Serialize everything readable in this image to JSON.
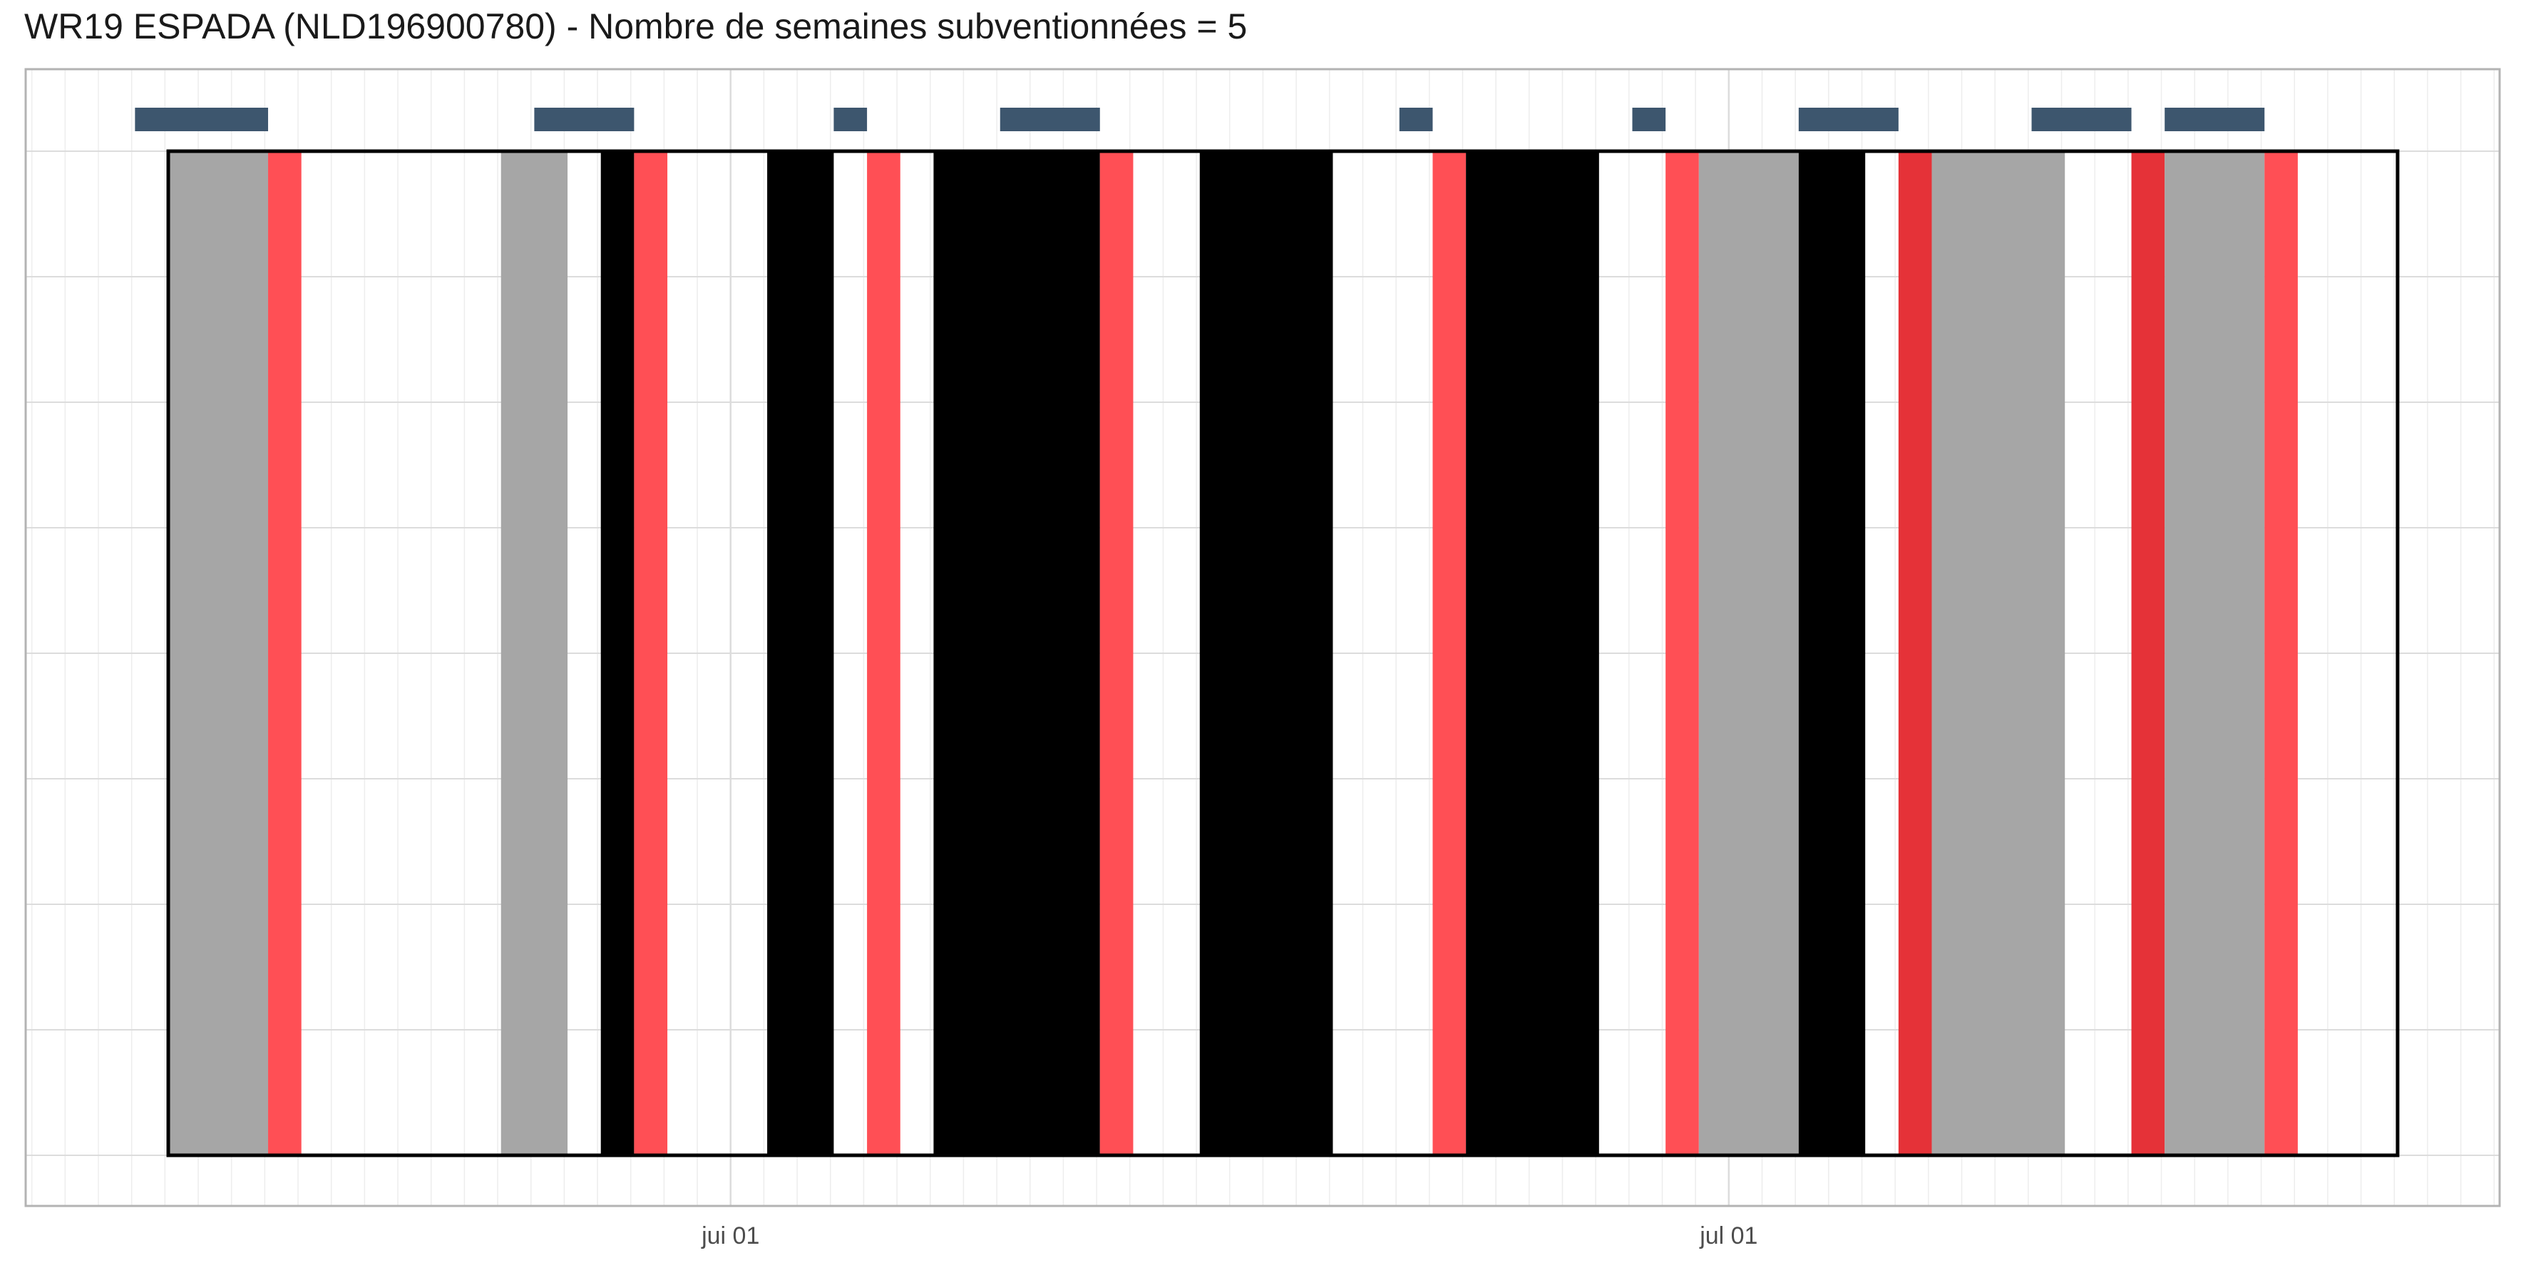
{
  "chart_data": {
    "type": "timeline",
    "title": "WR19 ESPADA (NLD196900780) - Nombre de semaines subventionnées = 5",
    "x_unit": "day index",
    "xlim": [
      0,
      74
    ],
    "major_ticks": [
      {
        "x": 21.25,
        "label": "jui 01"
      },
      {
        "x": 51.25,
        "label": "jul 01"
      }
    ],
    "frame": [
      4.35,
      71.35
    ],
    "segments": [
      {
        "start": 4.35,
        "end": 7.35,
        "color": "#a6a6a6"
      },
      {
        "start": 7.35,
        "end": 8.35,
        "color": "#ff4f55"
      },
      {
        "start": 14.35,
        "end": 16.35,
        "color": "#a6a6a6"
      },
      {
        "start": 17.35,
        "end": 18.35,
        "color": "#000000"
      },
      {
        "start": 18.35,
        "end": 19.35,
        "color": "#ff4f55"
      },
      {
        "start": 22.35,
        "end": 24.35,
        "color": "#000000"
      },
      {
        "start": 25.35,
        "end": 26.35,
        "color": "#ff4f55"
      },
      {
        "start": 27.35,
        "end": 32.35,
        "color": "#000000"
      },
      {
        "start": 32.35,
        "end": 33.35,
        "color": "#ff4f55"
      },
      {
        "start": 35.35,
        "end": 39.35,
        "color": "#000000"
      },
      {
        "start": 42.35,
        "end": 43.35,
        "color": "#ff4f55"
      },
      {
        "start": 43.35,
        "end": 47.35,
        "color": "#000000"
      },
      {
        "start": 49.35,
        "end": 50.35,
        "color": "#ff4f55"
      },
      {
        "start": 50.35,
        "end": 53.35,
        "color": "#a6a6a6"
      },
      {
        "start": 53.35,
        "end": 55.35,
        "color": "#000000"
      },
      {
        "start": 56.35,
        "end": 57.35,
        "color": "#e53238"
      },
      {
        "start": 57.35,
        "end": 61.35,
        "color": "#a6a6a6"
      },
      {
        "start": 63.35,
        "end": 64.35,
        "color": "#e53238"
      },
      {
        "start": 64.35,
        "end": 67.35,
        "color": "#a6a6a6"
      },
      {
        "start": 67.35,
        "end": 68.35,
        "color": "#ff4f55"
      }
    ],
    "top_markers": [
      {
        "start": 3.35,
        "end": 7.35
      },
      {
        "start": 15.35,
        "end": 18.35
      },
      {
        "start": 24.35,
        "end": 25.35
      },
      {
        "start": 29.35,
        "end": 32.35
      },
      {
        "start": 41.35,
        "end": 42.35
      },
      {
        "start": 48.35,
        "end": 49.35
      },
      {
        "start": 53.35,
        "end": 56.35
      },
      {
        "start": 60.35,
        "end": 63.35
      },
      {
        "start": 64.35,
        "end": 67.35
      }
    ],
    "colors": {
      "marker": "#3d566e",
      "frame": "#000000",
      "grid_major": "#dcdcdc",
      "grid_minor": "#ededed",
      "panel_border": "#b3b3b3"
    }
  }
}
